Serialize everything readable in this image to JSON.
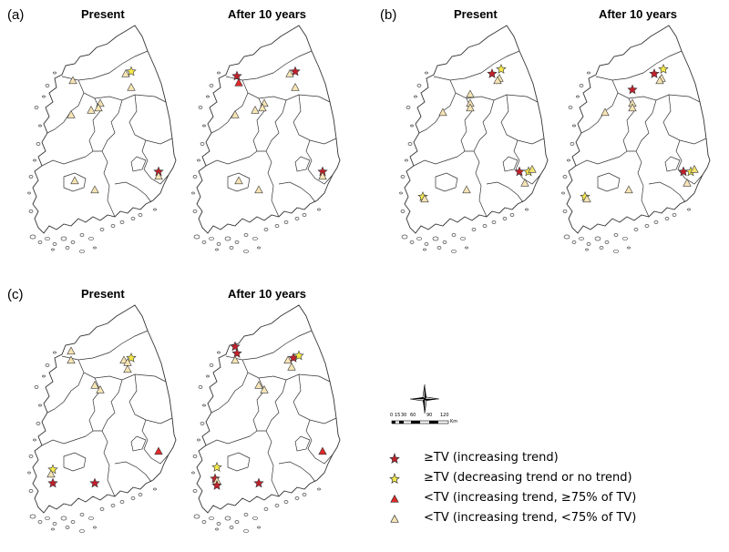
{
  "panels": [
    {
      "label": "(a)",
      "maps": [
        {
          "title": "Present",
          "markers": [
            {
              "type": "tri-light",
              "lon": 127.0,
              "lat": 37.55
            },
            {
              "type": "tri-light",
              "lon": 128.45,
              "lat": 37.7
            },
            {
              "type": "star-yellow",
              "lon": 128.6,
              "lat": 37.75
            },
            {
              "type": "tri-light",
              "lon": 128.6,
              "lat": 37.4
            },
            {
              "type": "tri-light",
              "lon": 127.75,
              "lat": 37.05
            },
            {
              "type": "tri-light",
              "lon": 127.7,
              "lat": 36.95
            },
            {
              "type": "tri-light",
              "lon": 127.5,
              "lat": 36.9
            },
            {
              "type": "tri-light",
              "lon": 126.95,
              "lat": 36.8
            },
            {
              "type": "star-red",
              "lon": 129.35,
              "lat": 35.55
            },
            {
              "type": "tri-light",
              "lon": 129.35,
              "lat": 35.45
            },
            {
              "type": "tri-light",
              "lon": 127.05,
              "lat": 35.35
            },
            {
              "type": "tri-light",
              "lon": 127.6,
              "lat": 35.15
            }
          ]
        },
        {
          "title": "After 10 years",
          "markers": [
            {
              "type": "star-red",
              "lon": 127.0,
              "lat": 37.65
            },
            {
              "type": "tri-red",
              "lon": 127.05,
              "lat": 37.5
            },
            {
              "type": "star-red",
              "lon": 128.6,
              "lat": 37.75
            },
            {
              "type": "tri-light",
              "lon": 128.45,
              "lat": 37.7
            },
            {
              "type": "tri-light",
              "lon": 128.6,
              "lat": 37.4
            },
            {
              "type": "tri-light",
              "lon": 127.75,
              "lat": 37.05
            },
            {
              "type": "tri-light",
              "lon": 127.7,
              "lat": 36.95
            },
            {
              "type": "tri-light",
              "lon": 127.5,
              "lat": 36.9
            },
            {
              "type": "tri-light",
              "lon": 126.95,
              "lat": 36.8
            },
            {
              "type": "star-red",
              "lon": 129.35,
              "lat": 35.55
            },
            {
              "type": "tri-light",
              "lon": 129.35,
              "lat": 35.45
            },
            {
              "type": "tri-light",
              "lon": 127.05,
              "lat": 35.35
            },
            {
              "type": "tri-light",
              "lon": 127.6,
              "lat": 35.15
            }
          ]
        }
      ]
    },
    {
      "label": "(b)",
      "maps": [
        {
          "title": "Present",
          "markers": [
            {
              "type": "star-red",
              "lon": 128.3,
              "lat": 37.7
            },
            {
              "type": "star-yellow",
              "lon": 128.55,
              "lat": 37.8
            },
            {
              "type": "tri-light",
              "lon": 128.5,
              "lat": 37.6
            },
            {
              "type": "tri-light",
              "lon": 128.45,
              "lat": 37.55
            },
            {
              "type": "tri-light",
              "lon": 127.7,
              "lat": 37.25
            },
            {
              "type": "tri-light",
              "lon": 127.7,
              "lat": 37.05
            },
            {
              "type": "tri-light",
              "lon": 127.7,
              "lat": 36.95
            },
            {
              "type": "tri-light",
              "lon": 126.95,
              "lat": 36.85
            },
            {
              "type": "star-red",
              "lon": 129.05,
              "lat": 35.55
            },
            {
              "type": "star-yellow",
              "lon": 129.3,
              "lat": 35.55
            },
            {
              "type": "tri-yellow",
              "lon": 129.4,
              "lat": 35.6
            },
            {
              "type": "tri-light",
              "lon": 129.2,
              "lat": 35.3
            },
            {
              "type": "star-yellow",
              "lon": 126.4,
              "lat": 35.0
            },
            {
              "type": "tri-light",
              "lon": 126.45,
              "lat": 34.95
            },
            {
              "type": "tri-light",
              "lon": 127.6,
              "lat": 35.15
            }
          ]
        },
        {
          "title": "After 10 years",
          "markers": [
            {
              "type": "star-red",
              "lon": 128.3,
              "lat": 37.7
            },
            {
              "type": "star-yellow",
              "lon": 128.55,
              "lat": 37.8
            },
            {
              "type": "tri-light",
              "lon": 128.5,
              "lat": 37.6
            },
            {
              "type": "tri-light",
              "lon": 128.45,
              "lat": 37.55
            },
            {
              "type": "star-red",
              "lon": 127.7,
              "lat": 37.35
            },
            {
              "type": "tri-light",
              "lon": 127.7,
              "lat": 37.05
            },
            {
              "type": "tri-light",
              "lon": 127.7,
              "lat": 36.95
            },
            {
              "type": "tri-light",
              "lon": 126.95,
              "lat": 36.85
            },
            {
              "type": "star-red",
              "lon": 129.1,
              "lat": 35.55
            },
            {
              "type": "star-yellow",
              "lon": 129.3,
              "lat": 35.55
            },
            {
              "type": "tri-yellow",
              "lon": 129.4,
              "lat": 35.6
            },
            {
              "type": "tri-light",
              "lon": 129.2,
              "lat": 35.3
            },
            {
              "type": "star-yellow",
              "lon": 126.4,
              "lat": 35.0
            },
            {
              "type": "tri-light",
              "lon": 126.45,
              "lat": 34.95
            },
            {
              "type": "tri-light",
              "lon": 127.6,
              "lat": 35.15
            }
          ]
        }
      ]
    },
    {
      "label": "(c)",
      "maps": [
        {
          "title": "Present",
          "markers": [
            {
              "type": "tri-light",
              "lon": 126.95,
              "lat": 37.75
            },
            {
              "type": "tri-light",
              "lon": 126.95,
              "lat": 37.55
            },
            {
              "type": "tri-light",
              "lon": 128.4,
              "lat": 37.55
            },
            {
              "type": "star-yellow",
              "lon": 128.6,
              "lat": 37.6
            },
            {
              "type": "tri-light",
              "lon": 128.5,
              "lat": 37.5
            },
            {
              "type": "tri-light",
              "lon": 128.5,
              "lat": 37.35
            },
            {
              "type": "tri-light",
              "lon": 127.6,
              "lat": 37.0
            },
            {
              "type": "tri-light",
              "lon": 127.75,
              "lat": 36.9
            },
            {
              "type": "tri-red",
              "lon": 129.35,
              "lat": 35.55
            },
            {
              "type": "star-yellow",
              "lon": 126.45,
              "lat": 35.15
            },
            {
              "type": "tri-light",
              "lon": 126.4,
              "lat": 35.05
            },
            {
              "type": "star-red",
              "lon": 126.45,
              "lat": 34.85
            },
            {
              "type": "star-red",
              "lon": 127.6,
              "lat": 34.85
            }
          ]
        },
        {
          "title": "After 10 years",
          "markers": [
            {
              "type": "star-red",
              "lon": 126.95,
              "lat": 37.85
            },
            {
              "type": "star-red",
              "lon": 127.0,
              "lat": 37.7
            },
            {
              "type": "tri-light",
              "lon": 126.95,
              "lat": 37.55
            },
            {
              "type": "tri-light",
              "lon": 128.4,
              "lat": 37.55
            },
            {
              "type": "star-red",
              "lon": 128.55,
              "lat": 37.6
            },
            {
              "type": "star-yellow",
              "lon": 128.7,
              "lat": 37.65
            },
            {
              "type": "tri-light",
              "lon": 128.5,
              "lat": 37.4
            },
            {
              "type": "tri-light",
              "lon": 127.6,
              "lat": 37.0
            },
            {
              "type": "tri-light",
              "lon": 127.75,
              "lat": 36.9
            },
            {
              "type": "tri-red",
              "lon": 129.35,
              "lat": 35.55
            },
            {
              "type": "star-yellow",
              "lon": 126.45,
              "lat": 35.2
            },
            {
              "type": "star-red",
              "lon": 126.4,
              "lat": 34.95
            },
            {
              "type": "tri-light",
              "lon": 126.45,
              "lat": 34.9
            },
            {
              "type": "star-red",
              "lon": 126.45,
              "lat": 34.8
            },
            {
              "type": "star-red",
              "lon": 127.6,
              "lat": 34.85
            }
          ]
        }
      ]
    }
  ],
  "legend": {
    "items": [
      {
        "symbol": "star-red",
        "label": "≥TV (increasing trend)"
      },
      {
        "symbol": "star-yellow",
        "label": "≥TV (decreasing trend or no trend)"
      },
      {
        "symbol": "tri-red",
        "label": "<TV (increasing trend, ≥75% of TV)"
      },
      {
        "symbol": "tri-light",
        "label": "<TV (increasing trend, <75% of TV)"
      }
    ]
  },
  "scale_bar": {
    "ticks": [
      "0",
      "15",
      "30",
      "60",
      "90",
      "120"
    ],
    "unit": "Km"
  },
  "compass": {
    "icon": "north-arrow-icon"
  },
  "colors": {
    "star_red": "#c0202a",
    "star_yellow": "#f4e84a",
    "tri_red": "#e02828",
    "tri_light": "#f6e4b4",
    "tri_yellow": "#f2e070",
    "outline": "#3a3a3a",
    "map_line": "#333333"
  }
}
